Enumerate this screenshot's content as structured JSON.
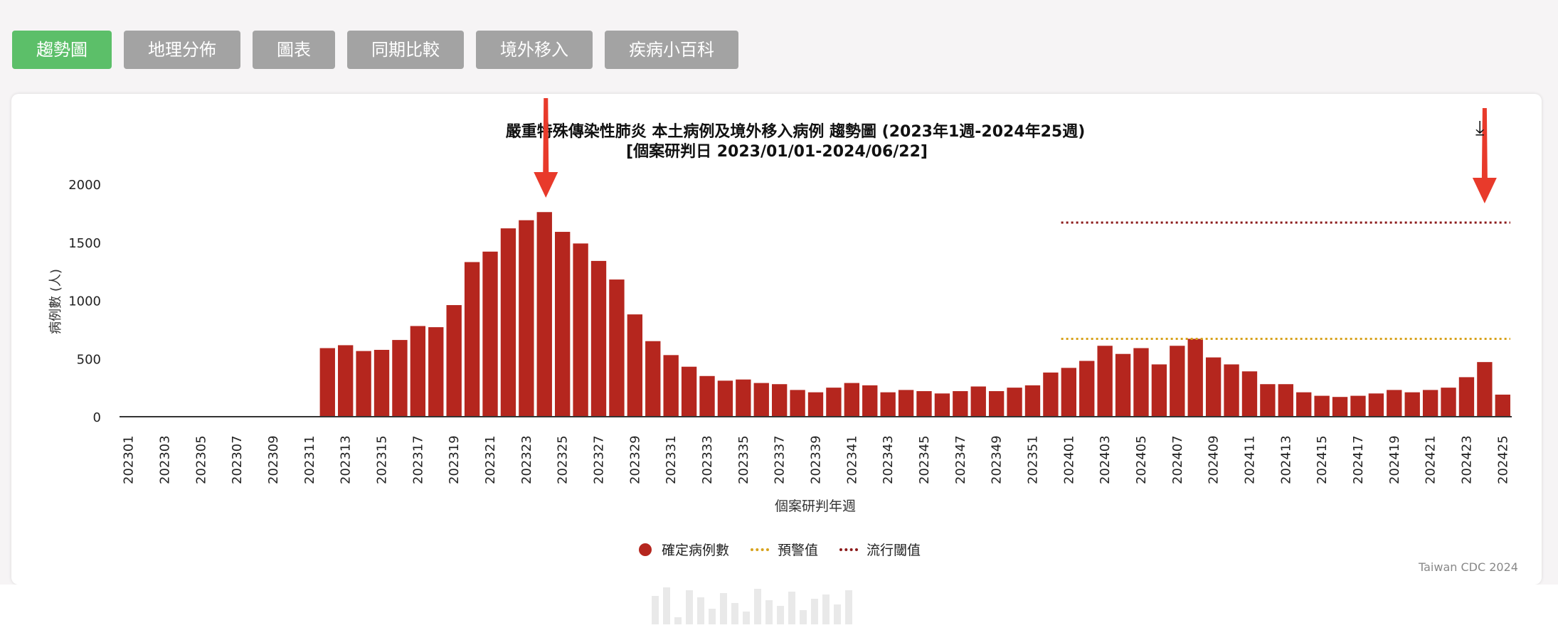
{
  "tabs": [
    {
      "label": "趨勢圖",
      "active": true
    },
    {
      "label": "地理分佈",
      "active": false
    },
    {
      "label": "圖表",
      "active": false
    },
    {
      "label": "同期比較",
      "active": false
    },
    {
      "label": "境外移入",
      "active": false
    },
    {
      "label": "疾病小百科",
      "active": false
    }
  ],
  "colors": {
    "active_tab": "#5cbf69",
    "inactive_tab": "#a3a3a3",
    "bar": "#b5261e",
    "warning": "#d7a21c",
    "epidemic": "#8b1a1a",
    "arrow": "#e83a2b"
  },
  "credit": "Taiwan CDC 2024",
  "icons": {
    "download": "download-icon"
  },
  "chart_data": {
    "type": "bar",
    "title": "嚴重特殊傳染性肺炎 本土病例及境外移入病例 趨勢圖 (2023年1週-2024年25週)",
    "subtitle": "[個案研判日 2023/01/01-2024/06/22]",
    "xlabel": "個案研判年週",
    "ylabel": "病例數 (人)",
    "ylim": [
      0,
      2000
    ],
    "yticks": [
      0,
      500,
      1000,
      1500,
      2000
    ],
    "grid": false,
    "legend_position": "bottom-center",
    "categories": [
      "202301",
      "202302",
      "202303",
      "202304",
      "202305",
      "202306",
      "202307",
      "202308",
      "202309",
      "202310",
      "202311",
      "202312",
      "202313",
      "202314",
      "202315",
      "202316",
      "202317",
      "202318",
      "202319",
      "202320",
      "202321",
      "202322",
      "202323",
      "202324",
      "202325",
      "202326",
      "202327",
      "202328",
      "202329",
      "202330",
      "202331",
      "202332",
      "202333",
      "202334",
      "202335",
      "202336",
      "202337",
      "202338",
      "202339",
      "202340",
      "202341",
      "202342",
      "202343",
      "202344",
      "202345",
      "202346",
      "202347",
      "202348",
      "202349",
      "202350",
      "202351",
      "202352",
      "202401",
      "202402",
      "202403",
      "202404",
      "202405",
      "202406",
      "202407",
      "202408",
      "202409",
      "202410",
      "202411",
      "202412",
      "202413",
      "202414",
      "202415",
      "202416",
      "202417",
      "202418",
      "202419",
      "202420",
      "202421",
      "202422",
      "202423",
      "202424",
      "202425"
    ],
    "tick_labels": [
      "202301",
      "202303",
      "202305",
      "202307",
      "202309",
      "202311",
      "202313",
      "202315",
      "202317",
      "202319",
      "202321",
      "202323",
      "202325",
      "202327",
      "202329",
      "202331",
      "202333",
      "202335",
      "202337",
      "202339",
      "202341",
      "202343",
      "202345",
      "202347",
      "202349",
      "202351",
      "202401",
      "202403",
      "202405",
      "202407",
      "202409",
      "202411",
      "202413",
      "202415",
      "202417",
      "202419",
      "202421",
      "202423",
      "202425"
    ],
    "series": [
      {
        "name": "確定病例數",
        "type": "bar",
        "values": [
          0,
          0,
          0,
          0,
          0,
          0,
          0,
          0,
          0,
          0,
          0,
          590,
          615,
          565,
          575,
          660,
          780,
          770,
          960,
          1330,
          1420,
          1620,
          1690,
          1760,
          1590,
          1490,
          1340,
          1180,
          880,
          650,
          530,
          430,
          350,
          310,
          320,
          290,
          280,
          230,
          210,
          250,
          290,
          270,
          210,
          230,
          220,
          200,
          220,
          260,
          220,
          250,
          270,
          380,
          420,
          480,
          610,
          540,
          590,
          450,
          610,
          670,
          510,
          450,
          390,
          280,
          280,
          210,
          180,
          170,
          180,
          200,
          230,
          210,
          230,
          250,
          340,
          470,
          190
        ]
      },
      {
        "name": "預警值",
        "type": "threshold",
        "value": 670,
        "from": "202401",
        "to": "202425"
      },
      {
        "name": "流行閾值",
        "type": "threshold",
        "value": 1670,
        "from": "202401",
        "to": "202425"
      }
    ],
    "annotations": [
      {
        "type": "arrow",
        "at": "202324"
      },
      {
        "type": "arrow",
        "at": "202424"
      }
    ]
  }
}
